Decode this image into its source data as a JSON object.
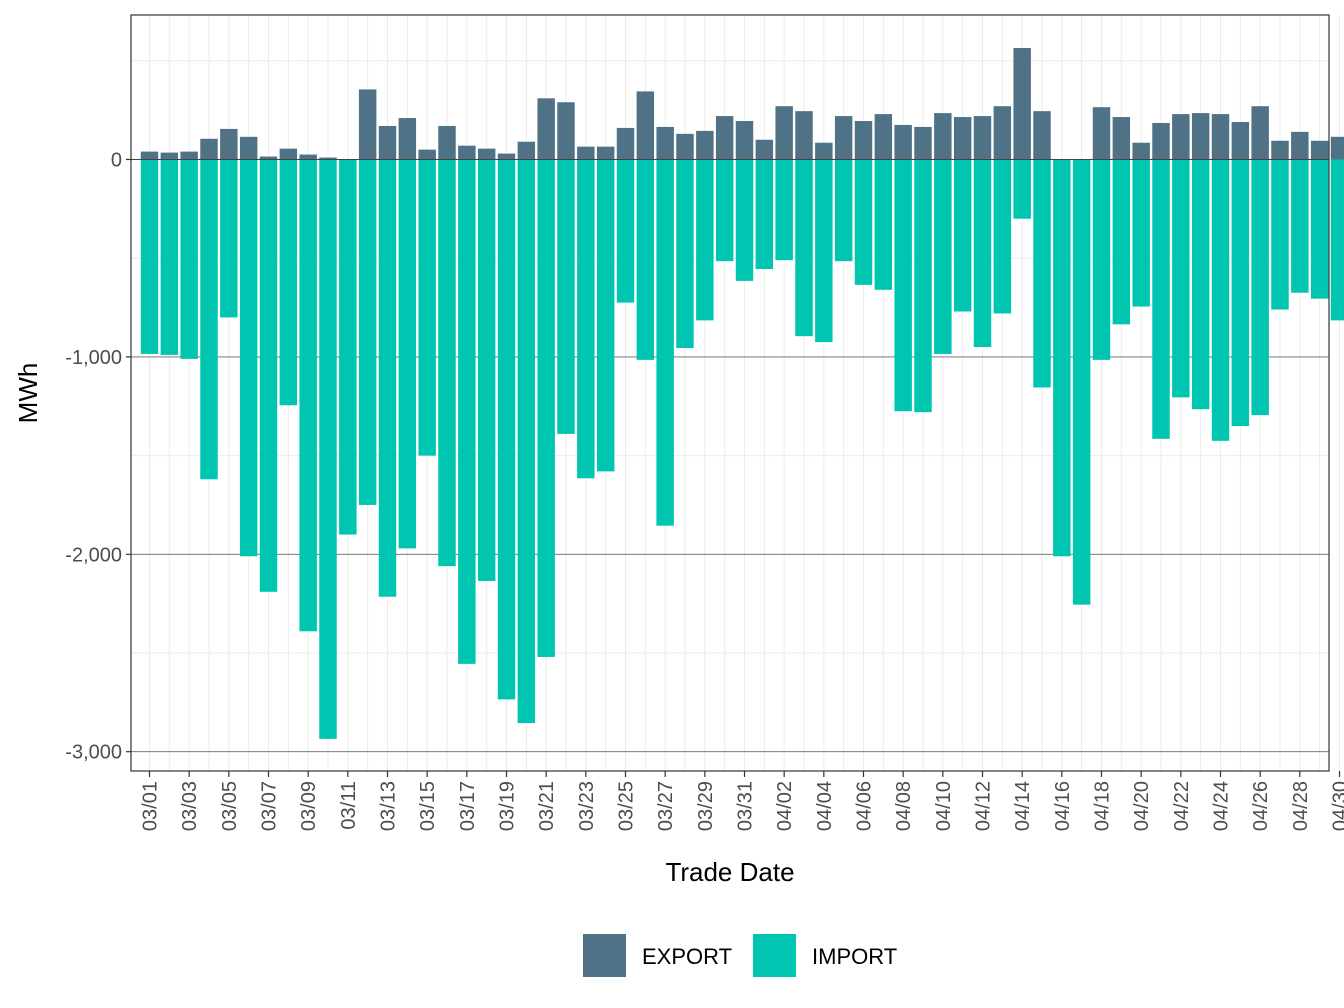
{
  "chart_data": {
    "type": "bar",
    "stacked": true,
    "title": "",
    "xlabel": "Trade Date",
    "ylabel": "MWh",
    "ylim": [
      -3100,
      730
    ],
    "y_ticks": [
      0,
      -1000,
      -2000,
      -3000
    ],
    "y_tick_labels": [
      "0",
      "-1,000",
      "-2,000",
      "-3,000"
    ],
    "x_tick_labels": [
      "03/01",
      "03/03",
      "03/05",
      "03/07",
      "03/09",
      "03/11",
      "03/13",
      "03/15",
      "03/17",
      "03/19",
      "03/21",
      "03/23",
      "03/25",
      "03/27",
      "03/29",
      "03/31",
      "04/02",
      "04/04",
      "04/06",
      "04/08",
      "04/10",
      "04/12",
      "04/14",
      "04/16",
      "04/18",
      "04/20",
      "04/22",
      "04/24",
      "04/26",
      "04/28",
      "04/30"
    ],
    "grid": true,
    "legend_position": "bottom",
    "categories": [
      "03/01",
      "03/02",
      "03/03",
      "03/04",
      "03/05",
      "03/06",
      "03/07",
      "03/08",
      "03/09",
      "03/10",
      "03/11",
      "03/12",
      "03/13",
      "03/14",
      "03/15",
      "03/16",
      "03/17",
      "03/18",
      "03/19",
      "03/20",
      "03/21",
      "03/22",
      "03/23",
      "03/24",
      "03/25",
      "03/26",
      "03/27",
      "03/28",
      "03/29",
      "03/30",
      "03/31",
      "04/01",
      "04/02",
      "04/03",
      "04/04",
      "04/05",
      "04/06",
      "04/07",
      "04/08",
      "04/09",
      "04/10",
      "04/11",
      "04/12",
      "04/13",
      "04/14",
      "04/15",
      "04/16",
      "04/17",
      "04/18",
      "04/19",
      "04/20",
      "04/21",
      "04/22",
      "04/23",
      "04/24",
      "04/25",
      "04/26",
      "04/27",
      "04/28",
      "04/29",
      "04/30"
    ],
    "series": [
      {
        "name": "EXPORT",
        "color": "#4f7287",
        "values": [
          40,
          35,
          40,
          105,
          155,
          115,
          15,
          55,
          25,
          10,
          0,
          355,
          170,
          210,
          50,
          170,
          70,
          55,
          30,
          90,
          310,
          290,
          65,
          65,
          160,
          345,
          165,
          130,
          145,
          220,
          195,
          100,
          270,
          245,
          85,
          220,
          195,
          230,
          175,
          165,
          235,
          215,
          220,
          270,
          565,
          245,
          0,
          0,
          265,
          215,
          85,
          185,
          230,
          235,
          230,
          190,
          270,
          95,
          140,
          95,
          115
        ]
      },
      {
        "name": "IMPORT",
        "color": "#00c5b1",
        "values": [
          -985,
          -990,
          -1010,
          -1620,
          -800,
          -2010,
          -2190,
          -1245,
          -2390,
          -2935,
          -1900,
          -1750,
          -2215,
          -1970,
          -1500,
          -2060,
          -2555,
          -2135,
          -2735,
          -2855,
          -2520,
          -1390,
          -1615,
          -1580,
          -725,
          -1015,
          -1855,
          -955,
          -815,
          -515,
          -615,
          -555,
          -510,
          -895,
          -925,
          -515,
          -635,
          -660,
          -1275,
          -1280,
          -985,
          -770,
          -950,
          -780,
          -300,
          -1155,
          -2010,
          -2255,
          -1015,
          -835,
          -745,
          -1415,
          -1205,
          -1265,
          -1425,
          -1350,
          -1295,
          -760,
          -675,
          -705,
          -815
        ]
      }
    ]
  },
  "legend": {
    "items": [
      {
        "label": "EXPORT",
        "color": "#4f7287"
      },
      {
        "label": "IMPORT",
        "color": "#00c5b1"
      }
    ]
  }
}
